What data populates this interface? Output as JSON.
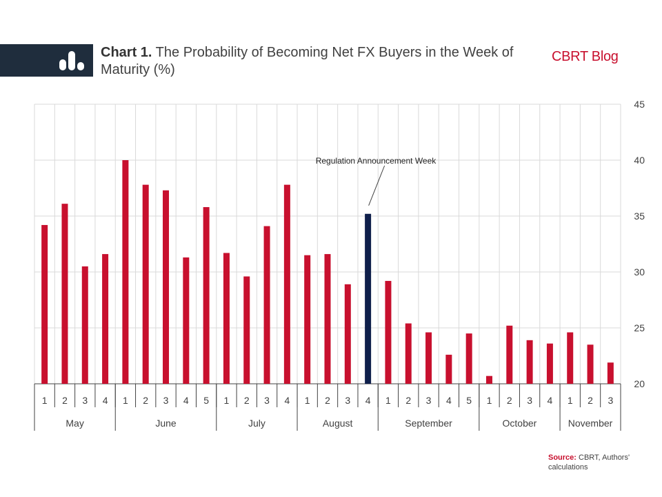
{
  "header": {
    "chart_label": "Chart 1.",
    "title_text": "The Probability of Becoming Net FX Buyers in the Week of Maturity (%)",
    "brand": "CBRT Blog",
    "icon": "bar-chart-icon"
  },
  "source": {
    "label": "Source:",
    "text": "CBRT, Authors' calculations"
  },
  "colors": {
    "bar": "#c8102e",
    "highlight": "#0f1f4b",
    "grid": "#d9d9d9",
    "header_bg": "#1f2d3d"
  },
  "chart_data": {
    "type": "bar",
    "title": "The Probability of Becoming Net FX Buyers in the Week of Maturity (%)",
    "ylim": [
      20,
      45
    ],
    "yticks": [
      20,
      25,
      30,
      35,
      40,
      45
    ],
    "y_axis_side": "right",
    "grid": true,
    "categories": [
      "1",
      "2",
      "3",
      "4",
      "1",
      "2",
      "3",
      "4",
      "5",
      "1",
      "2",
      "3",
      "4",
      "1",
      "2",
      "3",
      "4",
      "1",
      "2",
      "3",
      "4",
      "5",
      "1",
      "2",
      "3",
      "4",
      "1",
      "2",
      "3"
    ],
    "values": [
      34.2,
      36.1,
      30.5,
      31.6,
      40.0,
      37.8,
      37.3,
      31.3,
      35.8,
      31.7,
      29.6,
      34.1,
      37.8,
      31.5,
      31.6,
      28.9,
      35.2,
      29.2,
      25.4,
      24.6,
      22.6,
      24.5,
      20.7,
      25.2,
      23.9,
      23.6,
      24.6,
      23.5,
      21.9
    ],
    "highlight_index": 16,
    "months": [
      {
        "name": "May",
        "weeks": 4
      },
      {
        "name": "June",
        "weeks": 5
      },
      {
        "name": "July",
        "weeks": 4
      },
      {
        "name": "August",
        "weeks": 4
      },
      {
        "name": "September",
        "weeks": 5
      },
      {
        "name": "October",
        "weeks": 4
      },
      {
        "name": "November",
        "weeks": 3
      }
    ],
    "annotation": {
      "text": "Regulation Announcement Week",
      "target_index": 16
    }
  }
}
